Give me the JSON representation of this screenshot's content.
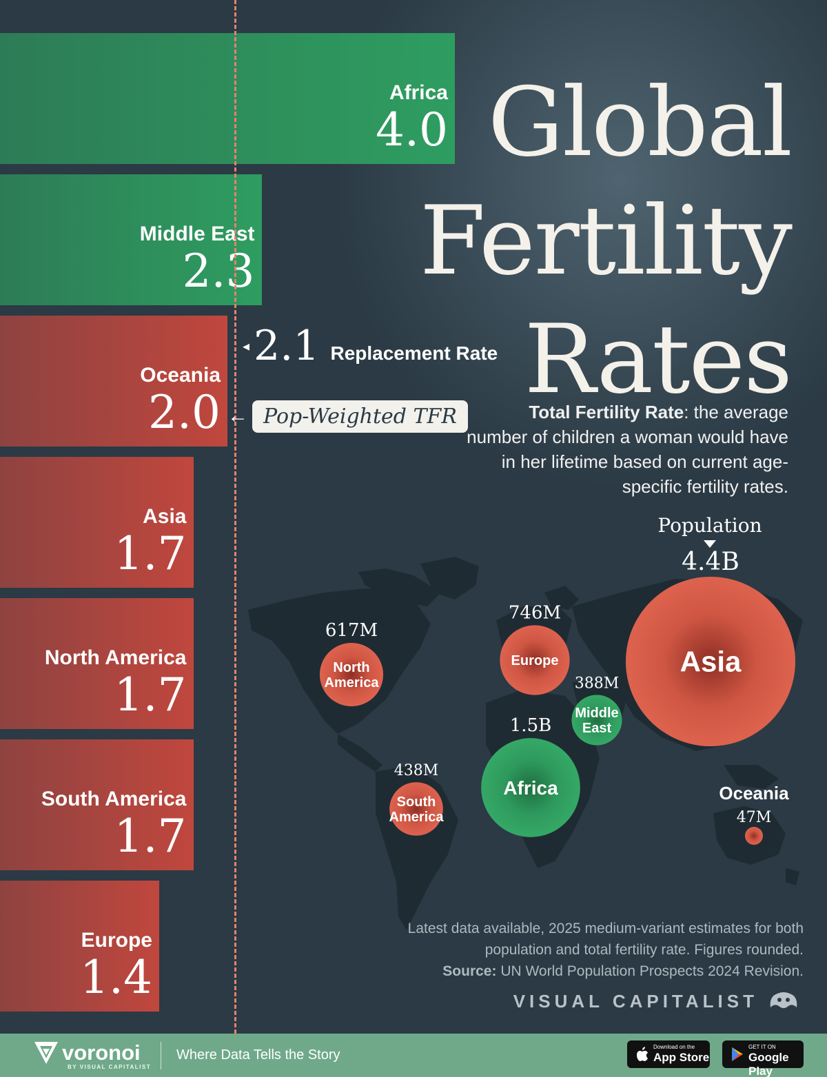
{
  "title_lines": [
    "Global",
    "Fertility",
    "Rates"
  ],
  "chart_data": [
    {
      "type": "bar",
      "orientation": "horizontal",
      "title": "Global Fertility Rates",
      "categories": [
        "Africa",
        "Middle East",
        "Oceania",
        "Asia",
        "North America",
        "South America",
        "Europe"
      ],
      "values": [
        4.0,
        2.3,
        2.0,
        1.7,
        1.7,
        1.7,
        1.4
      ],
      "value_labels": [
        "4.0",
        "2.3",
        "2.0",
        "1.7",
        "1.7",
        "1.7",
        "1.4"
      ],
      "bar_colors": [
        "#2e9d60",
        "#2e9d60",
        "#c0473e",
        "#c0473e",
        "#c0473e",
        "#c0473e",
        "#c0473e"
      ],
      "reference_line": {
        "value": 2.1,
        "value_label": "2.1",
        "label": "Replacement Rate"
      },
      "annotation": {
        "target": "Oceania",
        "label": "Pop-Weighted TFR"
      },
      "xlim": [
        0,
        4.0
      ],
      "grid": false,
      "legend": false
    },
    {
      "type": "scatter",
      "title": "Population",
      "encoding": "bubble map, circle area = population",
      "points": [
        {
          "region": "Asia",
          "label": "Asia",
          "population": "4.4B",
          "population_value": 4400000000,
          "color": "#d95b48"
        },
        {
          "region": "Africa",
          "label": "Africa",
          "population": "1.5B",
          "population_value": 1500000000,
          "color": "#2e9d60"
        },
        {
          "region": "Europe",
          "label": "Europe",
          "population": "746M",
          "population_value": 746000000,
          "color": "#d95b48"
        },
        {
          "region": "North America",
          "label": "North\nAmerica",
          "population": "617M",
          "population_value": 617000000,
          "color": "#d95b48"
        },
        {
          "region": "South America",
          "label": "South\nAmerica",
          "population": "438M",
          "population_value": 438000000,
          "color": "#d95b48"
        },
        {
          "region": "Middle East",
          "label": "Middle\nEast",
          "population": "388M",
          "population_value": 388000000,
          "color": "#2e9d60"
        },
        {
          "region": "Oceania",
          "label": "Oceania",
          "population": "47M",
          "population_value": 47000000,
          "color": "#d95b48"
        }
      ]
    }
  ],
  "definition": {
    "term": "Total Fertility Rate",
    "text": ": the average number of children a woman would have in her lifetime based on current age-specific fertility rates."
  },
  "source": {
    "note": "Latest data available, 2025 medium-variant estimates for both population and total fertility rate. Figures rounded.",
    "label": "Source:",
    "text": " UN World Population Prospects 2024 Revision."
  },
  "brand": "VISUAL CAPITALIST",
  "footer": {
    "brand": "voronoi",
    "brand_sub": "BY VISUAL CAPITALIST",
    "tagline": "Where Data Tells the Story",
    "app_store_small": "Download on the",
    "app_store_big": "App Store",
    "google_small": "GET IT ON",
    "google_big": "Google Play"
  },
  "colors": {
    "green": "#2e9d60",
    "red": "#c0473e",
    "background": "#2a3a44",
    "footer": "#6fa98a"
  }
}
